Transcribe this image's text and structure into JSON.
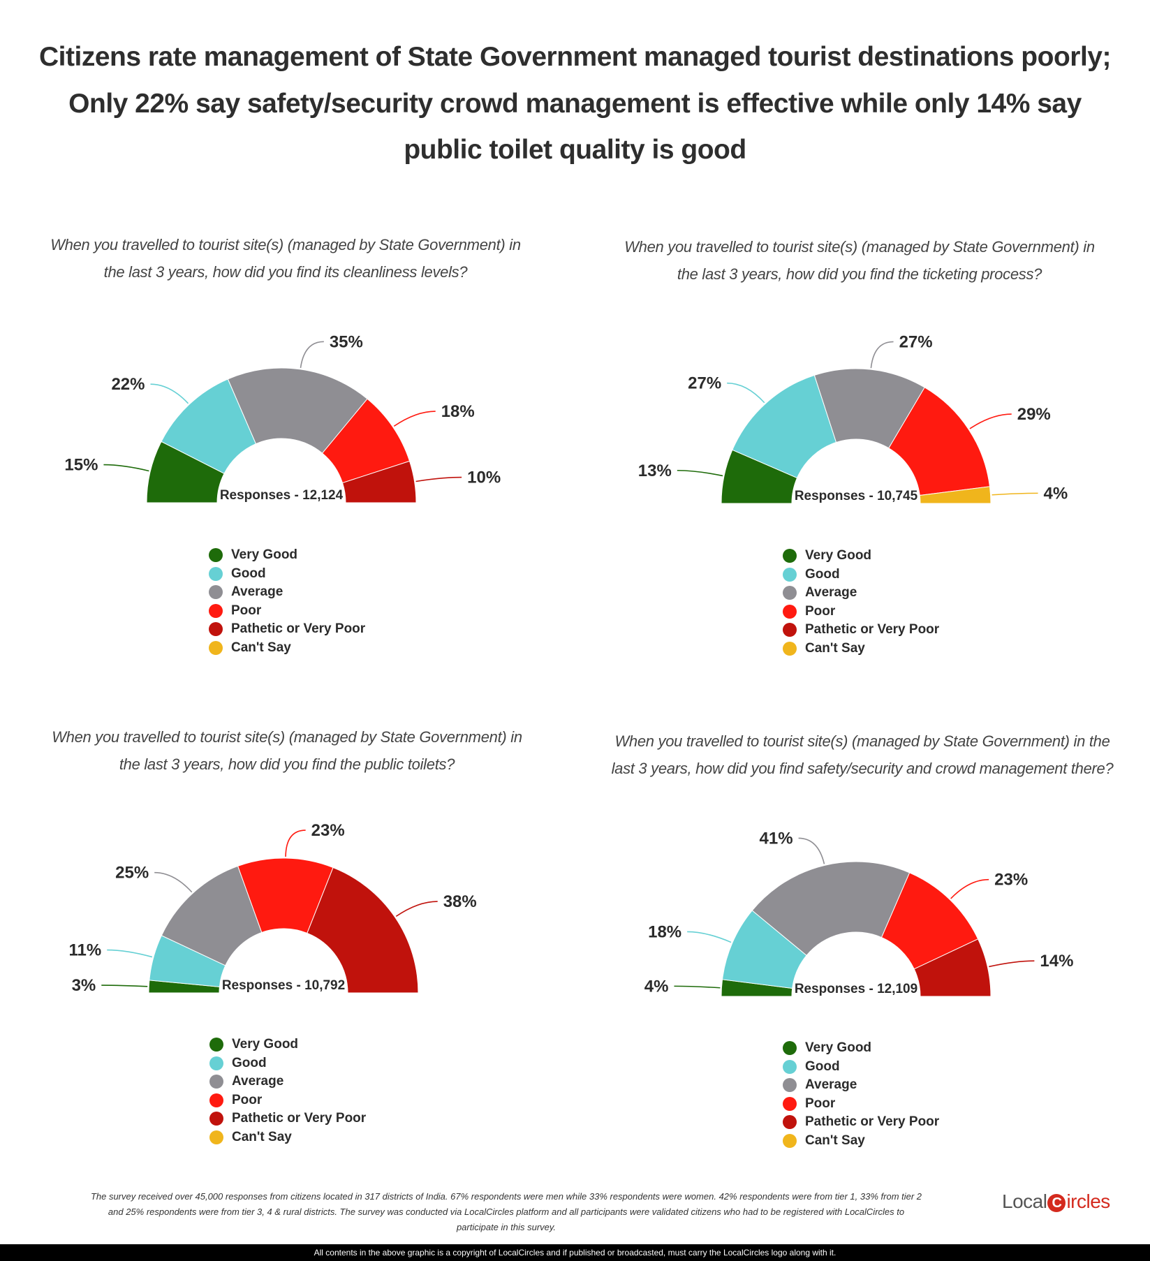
{
  "title": {
    "line1": "Citizens rate management of State Government managed tourist destinations poorly;",
    "line2": "Only 22% say safety/security crowd management is effective while only 14% say",
    "line3": "public toilet quality is good"
  },
  "colors": {
    "Very Good": "#1e6b0a",
    "Good": "#66d0d4",
    "Average": "#8f8e93",
    "Poor": "#ff1a10",
    "Pathetic or Very Poor": "#c0120c",
    "Can't Say": "#f0b51c"
  },
  "chart_data": [
    {
      "type": "pie",
      "subtype": "half-donut",
      "title": [
        "When you travelled to tourist site(s) (managed by State Government) in",
        "the last 3 years, how did you find its cleanliness levels?"
      ],
      "center_label": "Responses - 12,124",
      "categories": [
        "Very Good",
        "Good",
        "Average",
        "Poor",
        "Pathetic or Very Poor",
        "Can't Say"
      ],
      "values": [
        15,
        22,
        35,
        18,
        10,
        0
      ],
      "labels": [
        "15%",
        "22%",
        "35%",
        "18%",
        "10%",
        ""
      ],
      "legend": "bottom"
    },
    {
      "type": "pie",
      "subtype": "half-donut",
      "title": [
        "When you travelled to tourist site(s) (managed by State Government) in",
        "the last 3 years, how did you find the ticketing process?"
      ],
      "center_label": "Responses - 10,745",
      "categories": [
        "Very Good",
        "Good",
        "Average",
        "Poor",
        "Pathetic or Very Poor",
        "Can't Say"
      ],
      "values": [
        13,
        27,
        27,
        29,
        0,
        4
      ],
      "labels": [
        "13%",
        "27%",
        "27%",
        "29%",
        "",
        "4%"
      ],
      "legend": "bottom"
    },
    {
      "type": "pie",
      "subtype": "half-donut",
      "title": [
        "When you travelled to tourist site(s) (managed by State Government) in",
        "the last 3 years, how did you find the public toilets?"
      ],
      "center_label": "Responses - 10,792",
      "categories": [
        "Very Good",
        "Good",
        "Average",
        "Poor",
        "Pathetic or Very Poor",
        "Can't Say"
      ],
      "values": [
        3,
        11,
        25,
        23,
        38,
        0
      ],
      "labels": [
        "3%",
        "11%",
        "25%",
        "23%",
        "38%",
        ""
      ],
      "legend": "bottom"
    },
    {
      "type": "pie",
      "subtype": "half-donut",
      "title": [
        "When you travelled to tourist site(s) (managed by State Government) in the",
        "last 3 years, how did you find safety/security and crowd management there?"
      ],
      "center_label": "Responses - 12,109",
      "categories": [
        "Very Good",
        "Good",
        "Average",
        "Poor",
        "Pathetic or Very Poor",
        "Can't Say"
      ],
      "values": [
        4,
        18,
        41,
        23,
        14,
        0
      ],
      "labels": [
        "4%",
        "18%",
        "41%",
        "23%",
        "14%",
        ""
      ],
      "legend": "bottom"
    }
  ],
  "footer": {
    "line1": "The survey received over 45,000 responses from citizens located in 317 districts of India. 67% respondents were men while 33% respondents were women. 42% respondents were from tier 1, 33% from tier 2",
    "line2": "and 25% respondents were from tier 3, 4 & rural districts. The survey was conducted via LocalCircles platform and all participants were validated citizens who had to be registered with LocalCircles to",
    "line3": "participate in this survey.",
    "logo_text": "LocalCircles",
    "copyright": "All contents in the above graphic is a copyright of LocalCircles and if published or broadcasted, must carry the LocalCircles logo along with it."
  }
}
